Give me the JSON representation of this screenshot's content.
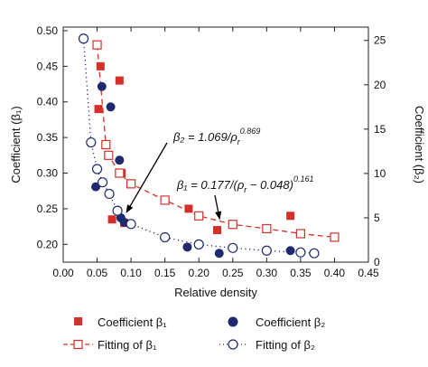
{
  "chart_data": {
    "type": "scatter",
    "xlabel": "Relative density",
    "ylabel_left": "Coefficient (β₁)",
    "ylabel_right": "Coefficient (β₂)",
    "xlim": [
      0.0,
      0.45
    ],
    "ylim_left": [
      0.175,
      0.505
    ],
    "ylim_right": [
      0,
      26.5
    ],
    "x_ticks": [
      "0.00",
      "0.05",
      "0.10",
      "0.15",
      "0.20",
      "0.25",
      "0.30",
      "0.35",
      "0.40",
      "0.45"
    ],
    "y_left_ticks": [
      "0.20",
      "0.25",
      "0.30",
      "0.35",
      "0.40",
      "0.45",
      "0.50"
    ],
    "y_right_ticks": [
      "0",
      "5",
      "10",
      "15",
      "20",
      "25"
    ],
    "grid": false,
    "legend_position": "bottom",
    "series": [
      {
        "name": "Coefficient β₁",
        "axis": "left",
        "marker": "filled-square",
        "color": "#d3302a",
        "x": [
          0.052,
          0.055,
          0.072,
          0.083,
          0.086,
          0.09,
          0.185,
          0.227,
          0.335
        ],
        "y": [
          0.39,
          0.45,
          0.235,
          0.43,
          0.3,
          0.23,
          0.25,
          0.22,
          0.24
        ]
      },
      {
        "name": "Coefficient β₂",
        "axis": "right",
        "marker": "filled-circle",
        "color": "#1f2a6e",
        "x": [
          0.048,
          0.057,
          0.07,
          0.083,
          0.085,
          0.09,
          0.183,
          0.23,
          0.335
        ],
        "y": [
          8.5,
          19.8,
          17.5,
          11.5,
          5.0,
          4.5,
          1.7,
          1.0,
          1.3
        ]
      },
      {
        "name": "Fitting of β₁",
        "axis": "left",
        "marker": "open-square",
        "line": "dashed",
        "color": "#d3302a",
        "x": [
          0.05,
          0.063,
          0.067,
          0.083,
          0.1,
          0.15,
          0.2,
          0.25,
          0.3,
          0.35,
          0.4
        ],
        "y": [
          0.48,
          0.34,
          0.325,
          0.3,
          0.285,
          0.262,
          0.24,
          0.228,
          0.222,
          0.215,
          0.21
        ]
      },
      {
        "name": "Fitting of β₂",
        "axis": "right",
        "marker": "open-circle",
        "line": "dotted",
        "color": "#1f2a6e",
        "x": [
          0.03,
          0.041,
          0.05,
          0.058,
          0.068,
          0.08,
          0.1,
          0.15,
          0.2,
          0.25,
          0.3,
          0.35,
          0.37
        ],
        "y": [
          25.2,
          13.5,
          10.5,
          9.0,
          7.7,
          5.8,
          4.3,
          2.8,
          2.0,
          1.6,
          1.3,
          1.1,
          1.0
        ]
      }
    ],
    "annotations": [
      {
        "label": "β₂ = 1.069/ρ",
        "superscript": "0.869",
        "subscript_after": "r",
        "target_x": 0.088,
        "target_y_right": 5.2,
        "axis": "right"
      },
      {
        "label": "β₁ = 0.177/(ρ",
        "subscript_after": "r",
        "tail": " − 0.048)",
        "superscript": "0.161",
        "target_x": 0.228,
        "target_y_left": 0.228,
        "axis": "left"
      }
    ]
  },
  "legend": [
    {
      "label": "Coefficient β₁",
      "marker": "filled-square",
      "color": "#d3302a"
    },
    {
      "label": "Coefficient β₂",
      "marker": "filled-circle",
      "color": "#1f2a6e"
    },
    {
      "label": "Fitting of β₁",
      "marker": "open-square-dashed",
      "color": "#d3302a"
    },
    {
      "label": "Fitting of β₂",
      "marker": "open-circle-dotted",
      "color": "#1f2a6e"
    }
  ]
}
